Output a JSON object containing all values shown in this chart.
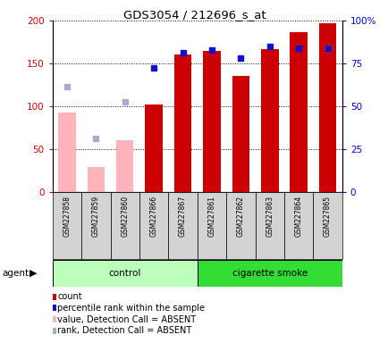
{
  "title": "GDS3054 / 212696_s_at",
  "samples": [
    "GSM227858",
    "GSM227859",
    "GSM227860",
    "GSM227866",
    "GSM227867",
    "GSM227861",
    "GSM227862",
    "GSM227863",
    "GSM227864",
    "GSM227865"
  ],
  "groups": [
    "control",
    "control",
    "control",
    "control",
    "control",
    "cigarette smoke",
    "cigarette smoke",
    "cigarette smoke",
    "cigarette smoke",
    "cigarette smoke"
  ],
  "count_values": [
    null,
    null,
    null,
    102,
    160,
    165,
    135,
    167,
    187,
    197
  ],
  "rank_values": [
    null,
    null,
    null,
    145,
    163,
    166,
    156,
    170,
    168,
    168
  ],
  "absent_value": [
    93,
    29,
    60,
    null,
    null,
    null,
    null,
    null,
    null,
    197
  ],
  "absent_rank": [
    123,
    63,
    105,
    null,
    null,
    null,
    null,
    null,
    null,
    168
  ],
  "bar_color_present": "#cc0000",
  "bar_color_absent_value": "#ffb3ba",
  "dot_color_present": "#1111cc",
  "dot_color_absent": "#aaaacc",
  "ylim": [
    0,
    200
  ],
  "y2lim": [
    0,
    100
  ],
  "yticks": [
    0,
    50,
    100,
    150,
    200
  ],
  "y2ticks": [
    0,
    25,
    50,
    75,
    100
  ],
  "ytick_labels_left": [
    "0",
    "50",
    "100",
    "150",
    "200"
  ],
  "ytick_labels_right": [
    "0",
    "25",
    "50",
    "75",
    "100%"
  ],
  "group_colors": {
    "control": "#bbffbb",
    "cigarette smoke": "#33dd33"
  },
  "legend": [
    {
      "label": "count",
      "color": "#cc0000"
    },
    {
      "label": "percentile rank within the sample",
      "color": "#1111cc"
    },
    {
      "label": "value, Detection Call = ABSENT",
      "color": "#ffb3ba"
    },
    {
      "label": "rank, Detection Call = ABSENT",
      "color": "#aaaacc"
    }
  ],
  "bar_width": 0.6
}
